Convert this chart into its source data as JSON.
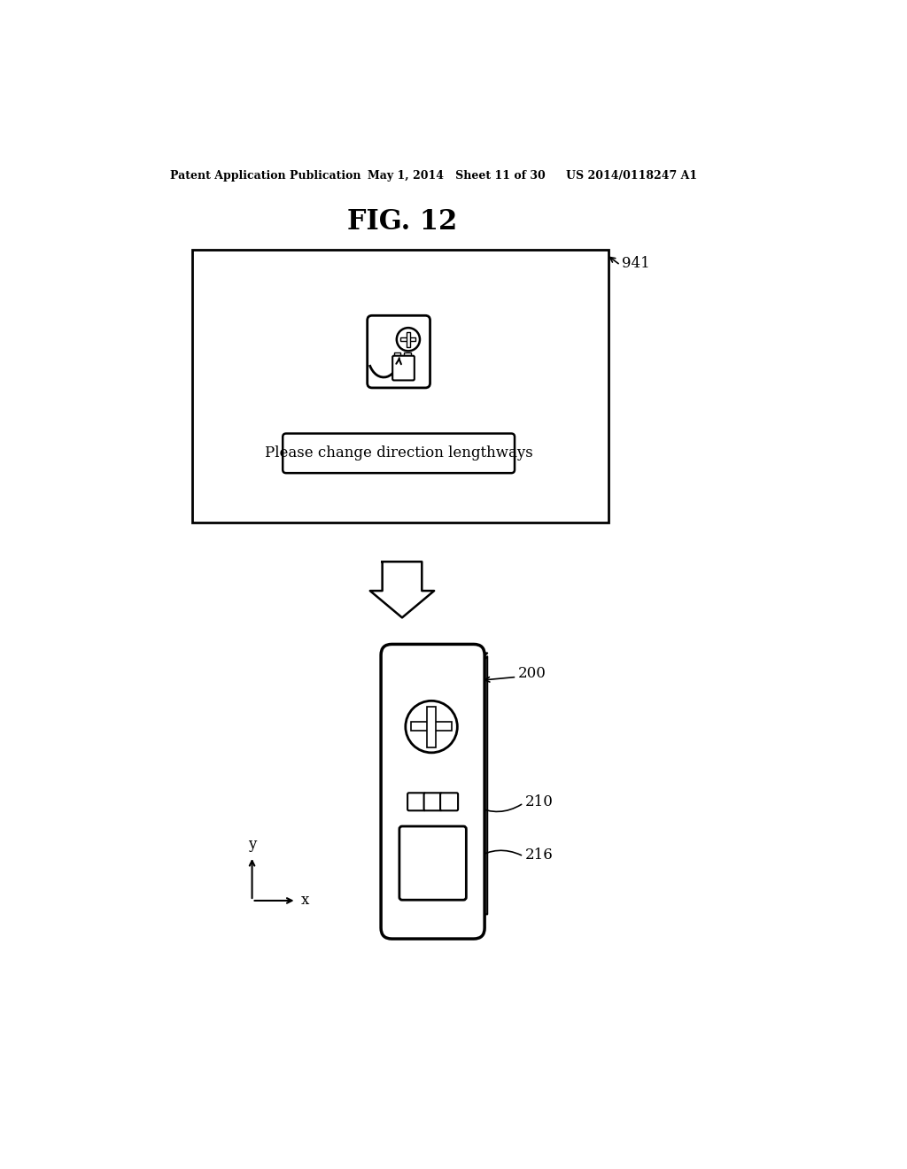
{
  "bg_color": "#ffffff",
  "header_left": "Patent Application Publication",
  "header_mid": "May 1, 2014   Sheet 11 of 30",
  "header_right": "US 2014/0118247 A1",
  "fig_title": "FIG. 12",
  "label_941": "941",
  "label_200": "200",
  "label_210": "210",
  "label_216": "216",
  "msg_text": "Please change direction lengthways",
  "axis_x": "x",
  "axis_y": "y"
}
